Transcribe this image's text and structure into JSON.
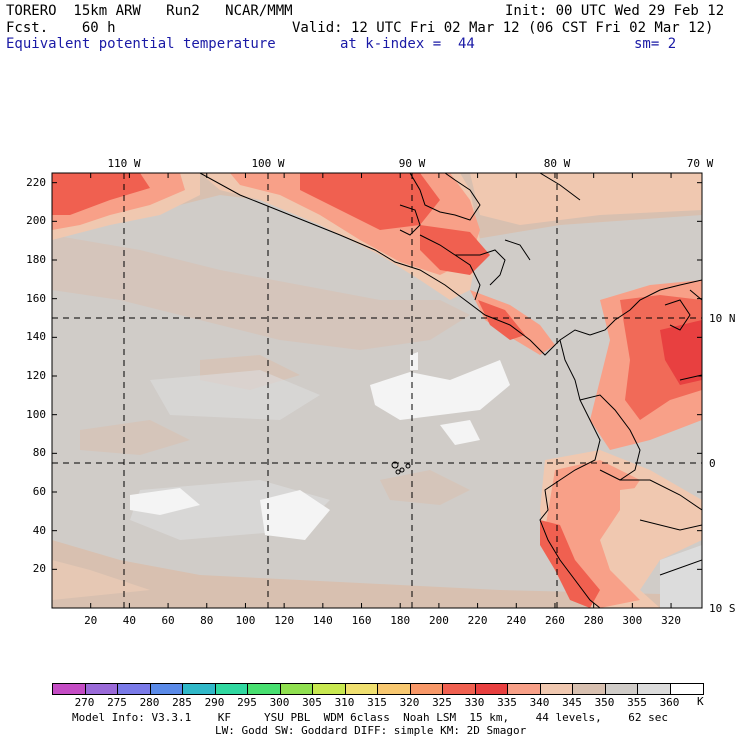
{
  "header": {
    "model_line": "TORERO  15km ARW   Run2   NCAR/MMM",
    "fcst_line": "Fcst.    60 h",
    "init_line": "Init: 00 UTC Wed 29 Feb 12",
    "valid_line": "Valid: 12 UTC Fri 02 Mar 12 (06 CST Fri 02 Mar 12)",
    "field_name": "Equivalent potential temperature",
    "level_text": "at k-index =  44",
    "smooth_text": "sm= 2"
  },
  "axes": {
    "top_lon_labels": [
      "110 W",
      "100 W",
      "90 W",
      "80 W",
      "70 W"
    ],
    "right_lat_labels": [
      "10 N",
      "0",
      "10 S"
    ],
    "left_y_ticks": [
      "20",
      "40",
      "60",
      "80",
      "100",
      "120",
      "140",
      "160",
      "180",
      "200",
      "220"
    ],
    "bottom_x_ticks": [
      "20",
      "40",
      "60",
      "80",
      "100",
      "120",
      "140",
      "160",
      "180",
      "200",
      "220",
      "240",
      "260",
      "280",
      "300",
      "320"
    ]
  },
  "colorbar": {
    "unit": "K",
    "labels": [
      "270",
      "275",
      "280",
      "285",
      "290",
      "295",
      "300",
      "305",
      "310",
      "315",
      "320",
      "325",
      "330",
      "335",
      "340",
      "345",
      "350",
      "355",
      "360"
    ],
    "colors": [
      "#c44cc4",
      "#9a6ad8",
      "#7a7ae8",
      "#5a8ae8",
      "#30b8c8",
      "#30d8a0",
      "#48e070",
      "#90e050",
      "#c8e850",
      "#f0e070",
      "#f8c870",
      "#f89868",
      "#f06050",
      "#e84040",
      "#f8a088",
      "#f0c8b0",
      "#d8c0b0",
      "#d0ccc8",
      "#dcdcdc",
      "#ffffff"
    ]
  },
  "footer": {
    "line1": "Model Info: V3.3.1    KF     YSU PBL  WDM 6class  Noah LSM  15 km,    44 levels,    62 sec",
    "line2": "LW: Godd SW: Goddard DIFF: simple KM: 2D Smagor"
  }
}
